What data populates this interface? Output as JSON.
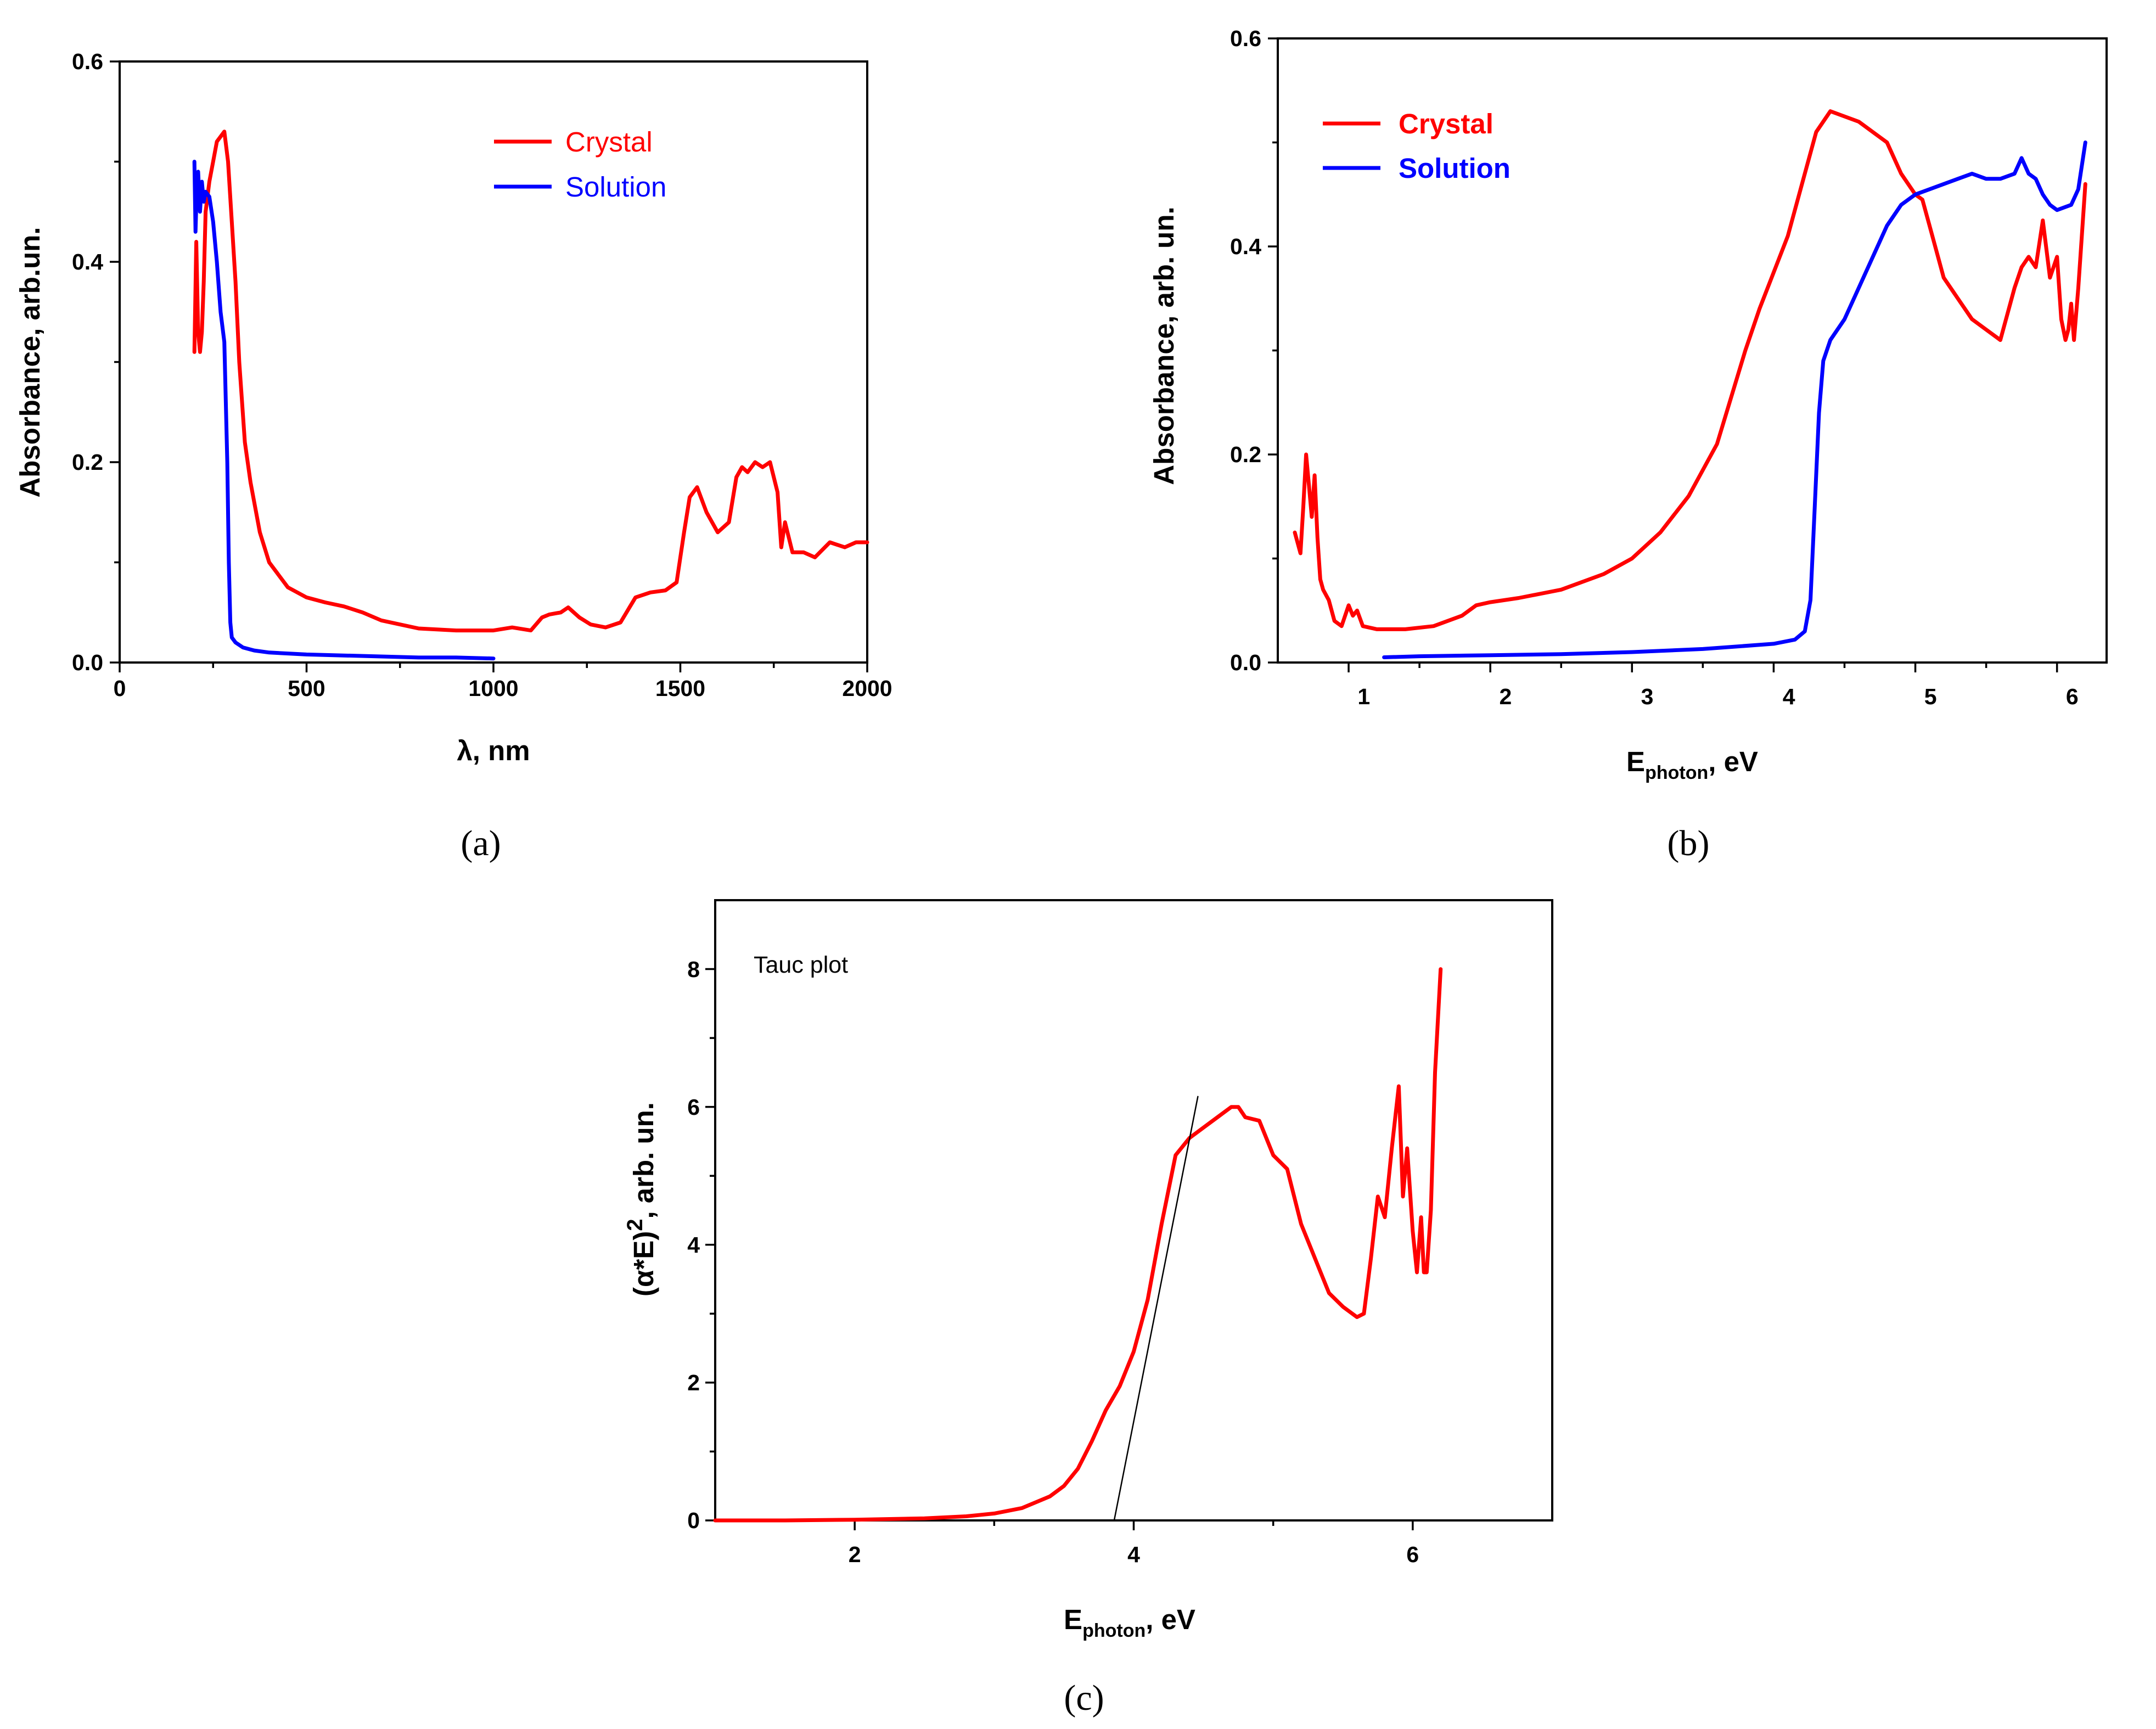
{
  "chart_data": [
    {
      "id": "a",
      "type": "line",
      "panel_label": "(a)",
      "title": "",
      "xlabel": "λ, nm",
      "ylabel": "Absorbance, arb.un.",
      "xlim": [
        0,
        2000
      ],
      "ylim": [
        0,
        0.6
      ],
      "xticks": [
        0,
        500,
        1000,
        1500,
        2000
      ],
      "xtick_labels": [
        "0",
        "500",
        "1000",
        "1500",
        "2000"
      ],
      "yticks": [
        0.0,
        0.2,
        0.4,
        0.6
      ],
      "ytick_labels": [
        "0.0",
        "0.2",
        "0.4",
        "0.6"
      ],
      "legend_position": "top-right",
      "legend_style": "normal",
      "series": [
        {
          "name": "Crystal",
          "color": "#ff0000",
          "x": [
            200,
            205,
            210,
            215,
            220,
            225,
            230,
            240,
            250,
            260,
            270,
            280,
            290,
            300,
            310,
            320,
            335,
            350,
            375,
            400,
            450,
            500,
            550,
            600,
            650,
            700,
            800,
            900,
            1000,
            1050,
            1100,
            1130,
            1150,
            1180,
            1200,
            1230,
            1260,
            1300,
            1340,
            1380,
            1420,
            1460,
            1490,
            1510,
            1525,
            1545,
            1570,
            1600,
            1630,
            1650,
            1665,
            1680,
            1700,
            1720,
            1740,
            1760,
            1770,
            1780,
            1800,
            1830,
            1860,
            1900,
            1940,
            1970,
            2000
          ],
          "y": [
            0.31,
            0.42,
            0.33,
            0.31,
            0.33,
            0.38,
            0.45,
            0.48,
            0.5,
            0.52,
            0.525,
            0.53,
            0.5,
            0.44,
            0.38,
            0.3,
            0.22,
            0.18,
            0.13,
            0.1,
            0.075,
            0.065,
            0.06,
            0.056,
            0.05,
            0.042,
            0.034,
            0.032,
            0.032,
            0.035,
            0.032,
            0.045,
            0.048,
            0.05,
            0.055,
            0.045,
            0.038,
            0.035,
            0.04,
            0.065,
            0.07,
            0.072,
            0.08,
            0.13,
            0.165,
            0.175,
            0.15,
            0.13,
            0.14,
            0.185,
            0.195,
            0.19,
            0.2,
            0.195,
            0.2,
            0.17,
            0.115,
            0.14,
            0.11,
            0.11,
            0.105,
            0.12,
            0.115,
            0.12,
            0.12
          ]
        },
        {
          "name": "Solution",
          "color": "#0000ff",
          "x": [
            200,
            203,
            206,
            210,
            215,
            220,
            225,
            230,
            240,
            250,
            260,
            270,
            280,
            288,
            292,
            296,
            300,
            310,
            330,
            360,
            400,
            500,
            600,
            700,
            800,
            900,
            1000
          ],
          "y": [
            0.5,
            0.43,
            0.47,
            0.49,
            0.45,
            0.48,
            0.46,
            0.47,
            0.465,
            0.44,
            0.4,
            0.35,
            0.32,
            0.2,
            0.1,
            0.04,
            0.025,
            0.02,
            0.015,
            0.012,
            0.01,
            0.008,
            0.007,
            0.006,
            0.005,
            0.005,
            0.004
          ]
        }
      ]
    },
    {
      "id": "b",
      "type": "line",
      "panel_label": "(b)",
      "title": "",
      "xlabel_main": "E",
      "xlabel_sub": "photon",
      "xlabel_tail": ", eV",
      "ylabel": "Absorbance, arb. un.",
      "xlim": [
        0.5,
        6.35
      ],
      "ylim": [
        0,
        0.6
      ],
      "xticks": [
        1,
        2,
        3,
        4,
        5,
        6
      ],
      "xtick_labels": [
        "1",
        "2",
        "3",
        "4",
        "5",
        "6"
      ],
      "yticks": [
        0.0,
        0.2,
        0.4,
        0.6
      ],
      "ytick_labels": [
        "0.0",
        "0.2",
        "0.4",
        "0.6"
      ],
      "legend_position": "top-left",
      "legend_style": "bold",
      "series": [
        {
          "name": "Crystal",
          "color": "#ff0000",
          "x": [
            0.62,
            0.66,
            0.68,
            0.7,
            0.72,
            0.74,
            0.76,
            0.78,
            0.8,
            0.82,
            0.86,
            0.9,
            0.95,
            1.0,
            1.03,
            1.06,
            1.1,
            1.2,
            1.4,
            1.6,
            1.8,
            1.9,
            2.0,
            2.2,
            2.5,
            2.8,
            3.0,
            3.2,
            3.4,
            3.6,
            3.8,
            3.9,
            4.0,
            4.1,
            4.2,
            4.3,
            4.4,
            4.5,
            4.6,
            4.8,
            4.9,
            5.0,
            5.05,
            5.1,
            5.2,
            5.3,
            5.4,
            5.5,
            5.6,
            5.7,
            5.75,
            5.8,
            5.85,
            5.9,
            5.95,
            6.0,
            6.03,
            6.06,
            6.08,
            6.1,
            6.12,
            6.15,
            6.2
          ],
          "y": [
            0.125,
            0.105,
            0.15,
            0.2,
            0.17,
            0.14,
            0.18,
            0.12,
            0.08,
            0.07,
            0.06,
            0.04,
            0.035,
            0.055,
            0.045,
            0.05,
            0.035,
            0.032,
            0.032,
            0.035,
            0.045,
            0.055,
            0.058,
            0.062,
            0.07,
            0.085,
            0.1,
            0.125,
            0.16,
            0.21,
            0.3,
            0.34,
            0.375,
            0.41,
            0.46,
            0.51,
            0.53,
            0.525,
            0.52,
            0.5,
            0.47,
            0.45,
            0.445,
            0.42,
            0.37,
            0.35,
            0.33,
            0.32,
            0.31,
            0.36,
            0.38,
            0.39,
            0.38,
            0.425,
            0.37,
            0.39,
            0.33,
            0.31,
            0.32,
            0.345,
            0.31,
            0.36,
            0.46
          ]
        },
        {
          "name": "Solution",
          "color": "#0000ff",
          "x": [
            1.25,
            1.5,
            2.0,
            2.5,
            3.0,
            3.5,
            4.0,
            4.15,
            4.22,
            4.26,
            4.29,
            4.32,
            4.35,
            4.4,
            4.5,
            4.6,
            4.7,
            4.8,
            4.9,
            5.0,
            5.1,
            5.2,
            5.3,
            5.4,
            5.5,
            5.6,
            5.7,
            5.75,
            5.8,
            5.85,
            5.9,
            5.95,
            6.0,
            6.1,
            6.15,
            6.2
          ],
          "y": [
            0.005,
            0.006,
            0.007,
            0.008,
            0.01,
            0.013,
            0.018,
            0.022,
            0.03,
            0.06,
            0.15,
            0.24,
            0.29,
            0.31,
            0.33,
            0.36,
            0.39,
            0.42,
            0.44,
            0.45,
            0.455,
            0.46,
            0.465,
            0.47,
            0.465,
            0.465,
            0.47,
            0.485,
            0.47,
            0.465,
            0.45,
            0.44,
            0.435,
            0.44,
            0.455,
            0.5
          ]
        }
      ]
    },
    {
      "id": "c",
      "type": "line",
      "panel_label": "(c)",
      "title": "",
      "annotation": "Tauc plot",
      "xlabel_main": "E",
      "xlabel_sub": "photon",
      "xlabel_tail": ", eV",
      "ylabel_main": "(α*E)",
      "ylabel_sup": "2",
      "ylabel_tail": ", arb. un.",
      "xlim": [
        1,
        7
      ],
      "ylim": [
        0,
        9
      ],
      "xticks": [
        2,
        4,
        6
      ],
      "xtick_labels": [
        "2",
        "4",
        "6"
      ],
      "yticks": [
        0,
        2,
        4,
        6,
        8
      ],
      "ytick_labels": [
        "0",
        "2",
        "4",
        "6",
        "8"
      ],
      "series": [
        {
          "name": "Tauc",
          "color": "#ff0000",
          "x": [
            1.0,
            1.5,
            2.0,
            2.5,
            2.8,
            3.0,
            3.2,
            3.4,
            3.5,
            3.6,
            3.7,
            3.8,
            3.9,
            4.0,
            4.1,
            4.2,
            4.3,
            4.4,
            4.5,
            4.6,
            4.7,
            4.75,
            4.8,
            4.9,
            5.0,
            5.1,
            5.2,
            5.3,
            5.4,
            5.5,
            5.6,
            5.65,
            5.7,
            5.75,
            5.8,
            5.85,
            5.9,
            5.93,
            5.96,
            6.0,
            6.03,
            6.06,
            6.08,
            6.1,
            6.13,
            6.16,
            6.2
          ],
          "y": [
            0,
            0,
            0.01,
            0.03,
            0.06,
            0.1,
            0.18,
            0.35,
            0.5,
            0.75,
            1.15,
            1.6,
            1.95,
            2.45,
            3.2,
            4.3,
            5.3,
            5.55,
            5.7,
            5.85,
            6.0,
            6.0,
            5.85,
            5.8,
            5.3,
            5.1,
            4.3,
            3.8,
            3.3,
            3.1,
            2.95,
            3.0,
            3.8,
            4.7,
            4.4,
            5.4,
            6.3,
            4.7,
            5.4,
            4.2,
            3.6,
            4.4,
            3.6,
            3.6,
            4.5,
            6.5,
            8.0
          ]
        },
        {
          "name": "Linear fit",
          "color": "#000000",
          "x": [
            3.86,
            4.46
          ],
          "y": [
            0,
            6.15
          ]
        }
      ]
    }
  ]
}
